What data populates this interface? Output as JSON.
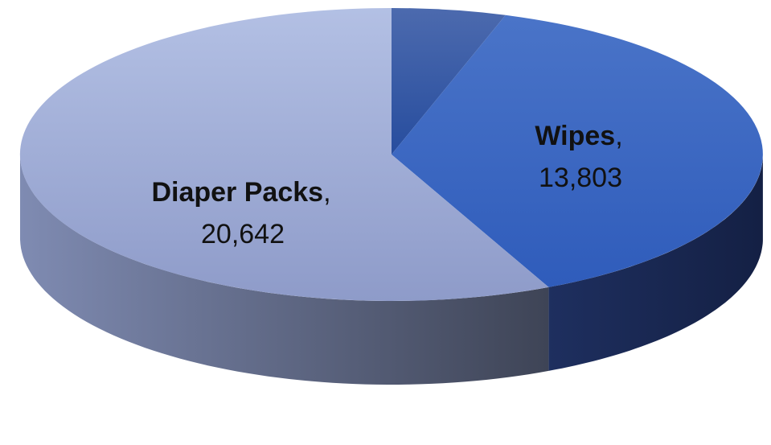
{
  "chart_data": {
    "type": "pie",
    "style": "3d",
    "slices": [
      {
        "label": "Wipes",
        "value": 13803,
        "value_label": "13,803",
        "color": "#3A68C4",
        "side_color": "#1B2C5A"
      },
      {
        "label": "Diaper Packs",
        "value": 20642,
        "value_label": "20,642",
        "color": "#A3B1DA",
        "side_color": "#5E6986"
      },
      {
        "label": "",
        "value": 1800,
        "value_label": "",
        "color": "#2C56A8",
        "side_color": "#1E336B"
      }
    ],
    "legend": "none",
    "data_labels": "on-slice"
  }
}
